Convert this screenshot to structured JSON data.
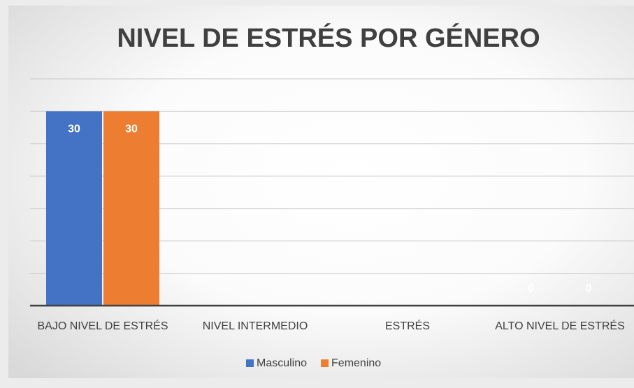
{
  "chart_data": {
    "type": "bar",
    "title": "NIVEL DE ESTRÉS POR GÉNERO",
    "categories": [
      "BAJO NIVEL DE ESTRÉS",
      "NIVEL INTERMEDIO",
      "ESTRÉS",
      "ALTO NIVEL DE ESTRÉS"
    ],
    "series": [
      {
        "name": "Masculino",
        "color": "#4472c4",
        "values": [
          30,
          null,
          null,
          0
        ]
      },
      {
        "name": "Femenino",
        "color": "#ed7d31",
        "values": [
          30,
          null,
          null,
          0
        ]
      }
    ],
    "ylim": [
      0,
      35
    ],
    "yticks": [
      0,
      5,
      10,
      15,
      20,
      25,
      30,
      35
    ],
    "grid": true,
    "legend": "bottom"
  }
}
